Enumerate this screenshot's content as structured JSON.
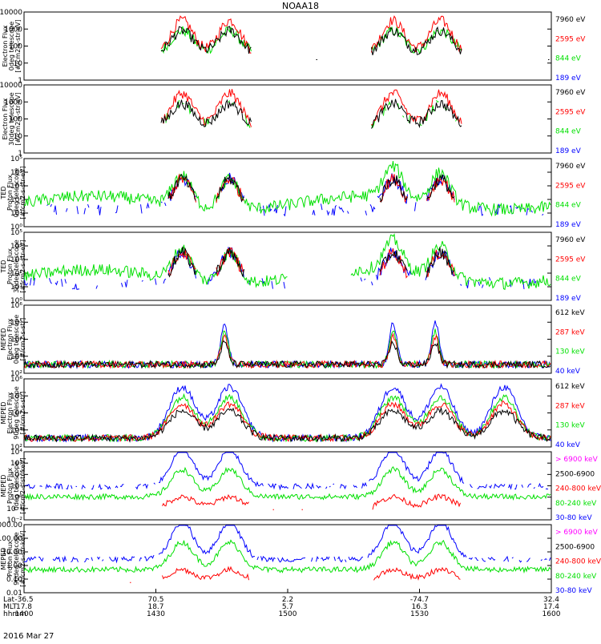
{
  "title": "NOAA18",
  "date_label": "2016 Mar 27",
  "colors": {
    "black": "#000000",
    "red": "#ff0000",
    "green": "#00e000",
    "blue": "#0000ff",
    "magenta": "#ff00ff"
  },
  "chart_data": [
    {
      "id": "ted-e-0",
      "type": "line",
      "ylabel": [
        "Electron Flux",
        "0deg telescope",
        "[#/cm2-s-str-eV]"
      ],
      "ticks": [
        "1",
        "10",
        "100",
        "1000",
        "10000"
      ],
      "ylim": [
        1,
        10000
      ],
      "scale": "log",
      "legend": [
        {
          "text": "7960 eV",
          "color": "black"
        },
        {
          "text": "2595 eV",
          "color": "red"
        },
        {
          "text": "844 eV",
          "color": "green"
        },
        {
          "text": "189 eV",
          "color": "blue"
        }
      ]
    },
    {
      "id": "ted-e-30",
      "type": "line",
      "ylabel": [
        "Electron Flux",
        "30deg telescope",
        "[#/cm2-s-str-eV]"
      ],
      "ticks": [
        "1",
        "10",
        "100",
        "1000",
        "10000"
      ],
      "ylim": [
        1,
        10000
      ],
      "scale": "log",
      "legend": [
        {
          "text": "7960 eV",
          "color": "black"
        },
        {
          "text": "2595 eV",
          "color": "red"
        },
        {
          "text": "844 eV",
          "color": "green"
        },
        {
          "text": "189 eV",
          "color": "blue"
        }
      ]
    },
    {
      "id": "ted-p-0",
      "type": "line",
      "ylabel": [
        "TED",
        "Proton Flux",
        "0deg telescope",
        "[#/cm2-s-str-eV]"
      ],
      "ticks": [
        "10⁰",
        "10¹",
        "10²",
        "10³",
        "10⁴",
        "10⁵"
      ],
      "ylim": [
        1,
        100000
      ],
      "scale": "log",
      "legend": [
        {
          "text": "7960 eV",
          "color": "black"
        },
        {
          "text": "2595 eV",
          "color": "red"
        },
        {
          "text": "844 eV",
          "color": "green"
        },
        {
          "text": "189 eV",
          "color": "blue"
        }
      ]
    },
    {
      "id": "ted-p-30",
      "type": "line",
      "ylabel": [
        "TED",
        "Proton Flux",
        "30deg telescope",
        "[#/cm2-s-str-eV]"
      ],
      "ticks": [
        "10⁰",
        "10¹",
        "10²",
        "10³",
        "10⁴",
        "10⁵"
      ],
      "ylim": [
        1,
        100000
      ],
      "scale": "log",
      "legend": [
        {
          "text": "7960 eV",
          "color": "black"
        },
        {
          "text": "2595 eV",
          "color": "red"
        },
        {
          "text": "844 eV",
          "color": "green"
        },
        {
          "text": "189 eV",
          "color": "blue"
        }
      ]
    },
    {
      "id": "meped-e-0",
      "type": "line",
      "ylabel": [
        "MEPED",
        "Electron Flux",
        "0deg telescope",
        "[#/cm2-s-str]"
      ],
      "ticks": [
        "10²",
        "10³",
        "10⁴",
        "10⁵",
        "10⁶"
      ],
      "ylim": [
        100,
        1000000
      ],
      "scale": "log",
      "legend": [
        {
          "text": "612 keV",
          "color": "black"
        },
        {
          "text": "287 keV",
          "color": "red"
        },
        {
          "text": "130 keV",
          "color": "green"
        },
        {
          "text": "40 keV",
          "color": "blue"
        }
      ]
    },
    {
      "id": "meped-e-90",
      "type": "line",
      "ylabel": [
        "MEPED",
        "Electron Flux",
        "90deg telescope",
        "[#/cm2-s-str]"
      ],
      "ticks": [
        "10²",
        "10³",
        "10⁴",
        "10⁵",
        "10⁶"
      ],
      "ylim": [
        100,
        1000000
      ],
      "scale": "log",
      "legend": [
        {
          "text": "612 keV",
          "color": "black"
        },
        {
          "text": "287 keV",
          "color": "red"
        },
        {
          "text": "130 keV",
          "color": "green"
        },
        {
          "text": "40 keV",
          "color": "blue"
        }
      ]
    },
    {
      "id": "meped-p-0",
      "type": "line",
      "ylabel": [
        "MEPED",
        "Proton Flux",
        "0deg telescope",
        "[#/cm2-s-str-keV]"
      ],
      "ticks": [
        "10⁻²",
        "10⁻¹",
        "10⁰",
        "10¹",
        "10²",
        "10³",
        "10⁴"
      ],
      "ylim": [
        0.01,
        10000
      ],
      "scale": "log",
      "legend": [
        {
          "text": "> 6900 keV",
          "color": "magenta"
        },
        {
          "text": "2500-6900",
          "color": "black"
        },
        {
          "text": "240-800 keV",
          "color": "red"
        },
        {
          "text": "80-240 keV",
          "color": "green"
        },
        {
          "text": "30-80 keV",
          "color": "blue"
        }
      ]
    },
    {
      "id": "meped-p-90",
      "type": "line",
      "ylabel": [
        "MEPED",
        "Proton Flux",
        "90deg telescope",
        "[#/cm2-s-str-keV]"
      ],
      "ticks": [
        "0.01",
        "0.10",
        "1.00",
        "10.00",
        "100.00",
        "1000.00"
      ],
      "ylim": [
        0.01,
        1000
      ],
      "scale": "log",
      "legend": [
        {
          "text": "> 6900 keV",
          "color": "magenta"
        },
        {
          "text": "2500-6900",
          "color": "black"
        },
        {
          "text": "240-800 keV",
          "color": "red"
        },
        {
          "text": "80-240 keV",
          "color": "green"
        },
        {
          "text": "30-80 keV",
          "color": "blue"
        }
      ]
    }
  ],
  "x_axis": {
    "row_labels": [
      "Lat",
      "MLT",
      "hhmm"
    ],
    "columns": [
      {
        "lat": "-36.5",
        "mlt": "17.8",
        "hhmm": "1400"
      },
      {
        "lat": "70.5",
        "mlt": "18.7",
        "hhmm": "1430"
      },
      {
        "lat": "2.2",
        "mlt": "5.7",
        "hhmm": "1500"
      },
      {
        "lat": "-74.7",
        "mlt": "16.3",
        "hhmm": "1530"
      },
      {
        "lat": "32.4",
        "mlt": "17.4",
        "hhmm": "1600"
      }
    ]
  }
}
